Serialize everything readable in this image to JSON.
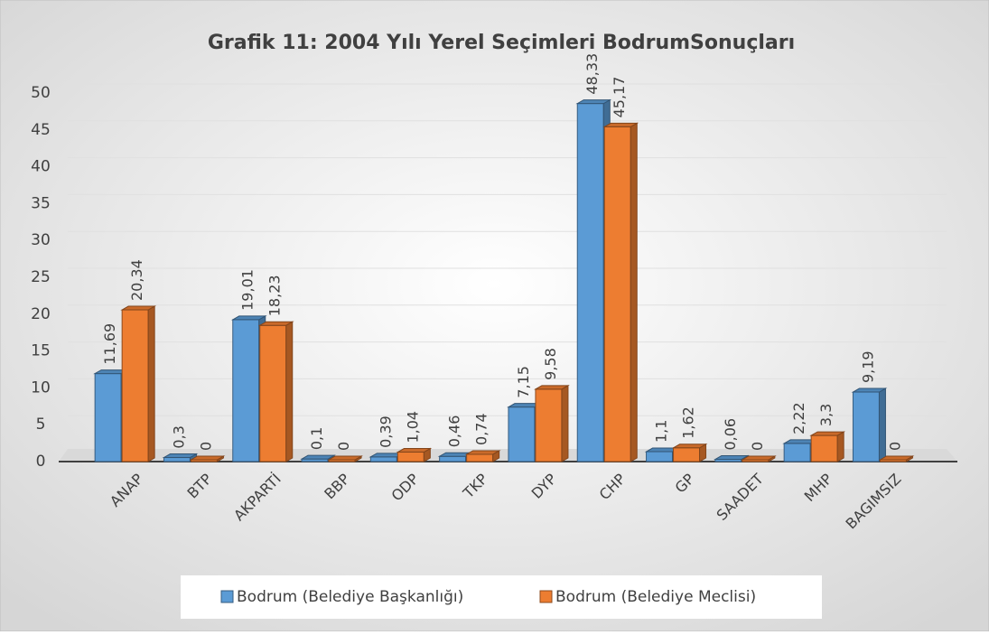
{
  "chart_data": {
    "type": "bar3d",
    "title": "Grafik 11: 2004 Yılı Yerel Seçimleri BodrumSonuçları",
    "categories": [
      "ANAP",
      "BTP",
      "AKPARTİ",
      "BBP",
      "ODP",
      "TKP",
      "DYP",
      "CHP",
      "GP",
      "SAADET",
      "MHP",
      "BAGIMSIZ"
    ],
    "series": [
      {
        "name": "Bodrum (Belediye Başkanlığı)",
        "color": "#5b9bd5",
        "values": [
          11.69,
          0.3,
          19.01,
          0.1,
          0.39,
          0.46,
          7.15,
          48.33,
          1.1,
          0.06,
          2.22,
          9.19
        ],
        "value_labels": [
          "11,69",
          "0,3",
          "19,01",
          "0,1",
          "0,39",
          "0,46",
          "7,15",
          "48,33",
          "1,1",
          "0,06",
          "2,22",
          "9,19"
        ]
      },
      {
        "name": "Bodrum (Belediye Meclisi)",
        "color": "#ed7d31",
        "values": [
          20.34,
          0,
          18.23,
          0,
          1.04,
          0.74,
          9.58,
          45.17,
          1.62,
          0,
          3.3,
          0
        ],
        "value_labels": [
          "20,34",
          "0",
          "18,23",
          "0",
          "1,04",
          "0,74",
          "9,58",
          "45,17",
          "1,62",
          "0",
          "3,3",
          "0"
        ]
      }
    ],
    "ylim": [
      0,
      50
    ],
    "yticks": [
      0,
      5,
      10,
      15,
      20,
      25,
      30,
      35,
      40,
      45,
      50
    ],
    "grid": true,
    "legend": "bottom"
  }
}
